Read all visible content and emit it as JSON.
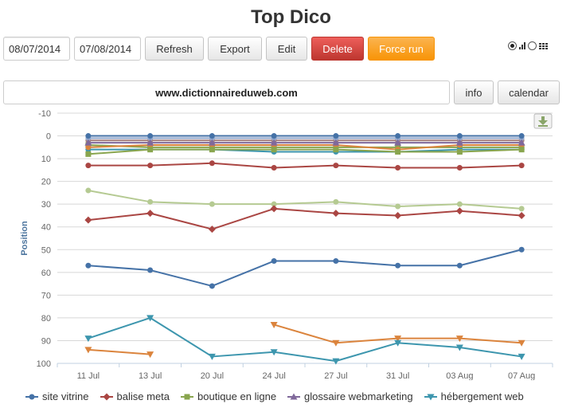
{
  "header": {
    "title": "Top Dico"
  },
  "toolbar": {
    "date_from": "08/07/2014",
    "date_to": "07/08/2014",
    "refresh_label": "Refresh",
    "export_label": "Export",
    "edit_label": "Edit",
    "delete_label": "Delete",
    "force_run_label": "Force run",
    "view_mode": "chart"
  },
  "site": {
    "domain": "www.dictionnaireduweb.com",
    "info_label": "info",
    "calendar_label": "calendar"
  },
  "colors": {
    "danger": "#da4f49",
    "warning": "#f89406"
  },
  "chart_data": {
    "type": "line",
    "ylabel": "Position",
    "y_reversed": true,
    "ylim": [
      -10,
      100
    ],
    "yticks": [
      -10,
      0,
      10,
      20,
      30,
      40,
      50,
      60,
      70,
      80,
      90,
      100
    ],
    "categories": [
      "11 Jul",
      "13 Jul",
      "20 Jul",
      "24 Jul",
      "27 Jul",
      "31 Jul",
      "03 Aug",
      "07 Aug"
    ],
    "grid": "horizontal",
    "legend_position": "bottom",
    "series": [
      {
        "name": "site vitrine",
        "color": "#4572A7",
        "marker": "circle",
        "legend": true,
        "values": [
          57,
          59,
          66,
          55,
          55,
          57,
          57,
          50
        ]
      },
      {
        "name": "balise meta",
        "color": "#AA4643",
        "marker": "diamond",
        "legend": true,
        "values": [
          37,
          34,
          41,
          32,
          34,
          35,
          33,
          35
        ]
      },
      {
        "name": "boutique en ligne",
        "color": "#89A54E",
        "marker": "square",
        "legend": true,
        "values": [
          8,
          6,
          6,
          6,
          6,
          7,
          7,
          6
        ]
      },
      {
        "name": "glossaire webmarketing",
        "color": "#80699B",
        "marker": "triangle",
        "legend": true,
        "values": [
          3,
          3,
          3,
          3,
          3,
          3,
          3,
          3
        ]
      },
      {
        "name": "hébergement web",
        "color": "#3D96AE",
        "marker": "triangle-down",
        "legend": true,
        "values": [
          89,
          80,
          97,
          95,
          99,
          91,
          93,
          97
        ]
      },
      {
        "color": "#AA4643",
        "marker": "circle",
        "values": [
          13,
          13,
          12,
          14,
          13,
          14,
          14,
          13
        ]
      },
      {
        "color": "#B5CA92",
        "marker": "circle",
        "values": [
          24,
          29,
          30,
          30,
          29,
          31,
          30,
          32
        ]
      },
      {
        "color": "#DB843D",
        "marker": "triangle-down",
        "values": [
          94,
          96,
          null,
          83,
          91,
          89,
          89,
          91
        ]
      },
      {
        "color": "#4572A7",
        "marker": "circle",
        "values": [
          0,
          0,
          0,
          0,
          0,
          0,
          0,
          0
        ]
      },
      {
        "color": "#92A8CD",
        "marker": "circle",
        "values": [
          1,
          1,
          1,
          1,
          1,
          1,
          1,
          1
        ]
      },
      {
        "color": "#A47D7C",
        "marker": "circle",
        "values": [
          2,
          2,
          2,
          2,
          2,
          2,
          2,
          2
        ]
      },
      {
        "color": "#DB843D",
        "marker": "circle",
        "values": [
          5,
          4,
          4,
          4,
          4,
          6,
          4,
          4
        ]
      },
      {
        "color": "#3D96AE",
        "marker": "circle",
        "values": [
          6,
          6,
          6,
          7,
          7,
          7,
          6,
          6
        ]
      },
      {
        "color": "#89A54E",
        "marker": "square",
        "values": [
          4,
          5,
          5,
          5,
          5,
          5,
          5,
          5
        ]
      }
    ]
  }
}
